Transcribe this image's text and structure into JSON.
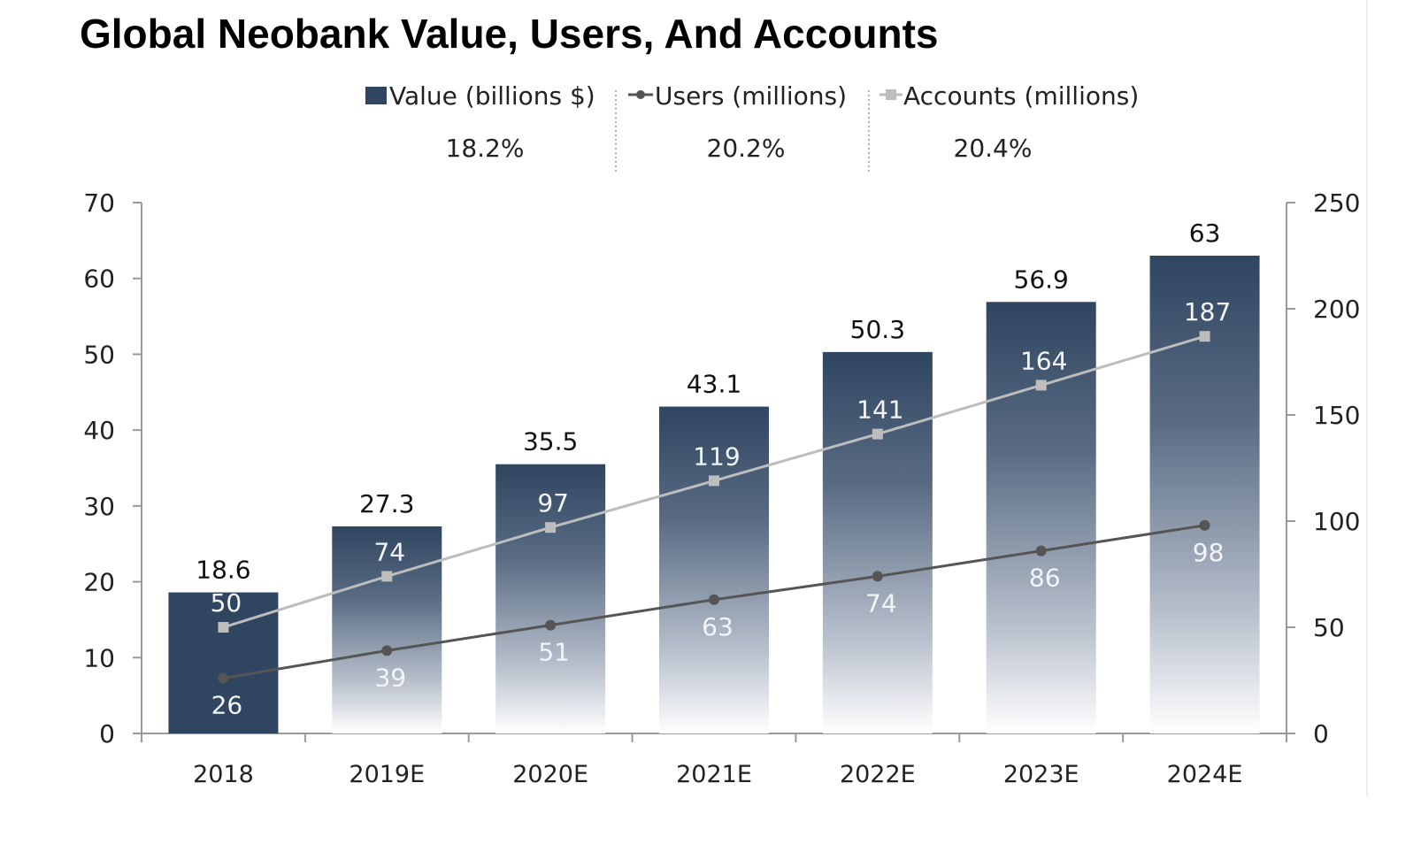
{
  "chart_data": {
    "type": "bar",
    "title": "Global Neobank Value, Users, And Accounts",
    "categories": [
      "2018",
      "2019E",
      "2020E",
      "2021E",
      "2022E",
      "2023E",
      "2024E"
    ],
    "series": [
      {
        "name": "Value (billions $)",
        "type": "bar",
        "axis": "left",
        "values": [
          18.6,
          27.3,
          35.5,
          43.1,
          50.3,
          56.9,
          63
        ],
        "labels": [
          "18.6",
          "27.3",
          "35.5",
          "43.1",
          "50.3",
          "56.9",
          "63"
        ],
        "color": "#2f4560",
        "cagr": "18.2%"
      },
      {
        "name": "Users (millions)",
        "type": "line",
        "axis": "right",
        "values": [
          26,
          39,
          51,
          63,
          74,
          86,
          98
        ],
        "labels": [
          "26",
          "39",
          "51",
          "63",
          "74",
          "86",
          "98"
        ],
        "color": "#555555",
        "cagr": "20.2%"
      },
      {
        "name": "Accounts (millions)",
        "type": "line",
        "axis": "right",
        "values": [
          50,
          74,
          97,
          119,
          141,
          164,
          187
        ],
        "labels": [
          "50",
          "74",
          "97",
          "119",
          "141",
          "164",
          "187"
        ],
        "color": "#bdbdbd",
        "cagr": "20.4%"
      }
    ],
    "y_left": {
      "range": [
        0,
        70
      ],
      "ticks": [
        "0",
        "10",
        "20",
        "30",
        "40",
        "50",
        "60",
        "70"
      ]
    },
    "y_right": {
      "range": [
        0,
        250
      ],
      "ticks": [
        "0",
        "50",
        "100",
        "150",
        "200",
        "250"
      ]
    },
    "xlabel": "",
    "ylabel": "",
    "grid": false,
    "legend_placement": "top-center"
  }
}
